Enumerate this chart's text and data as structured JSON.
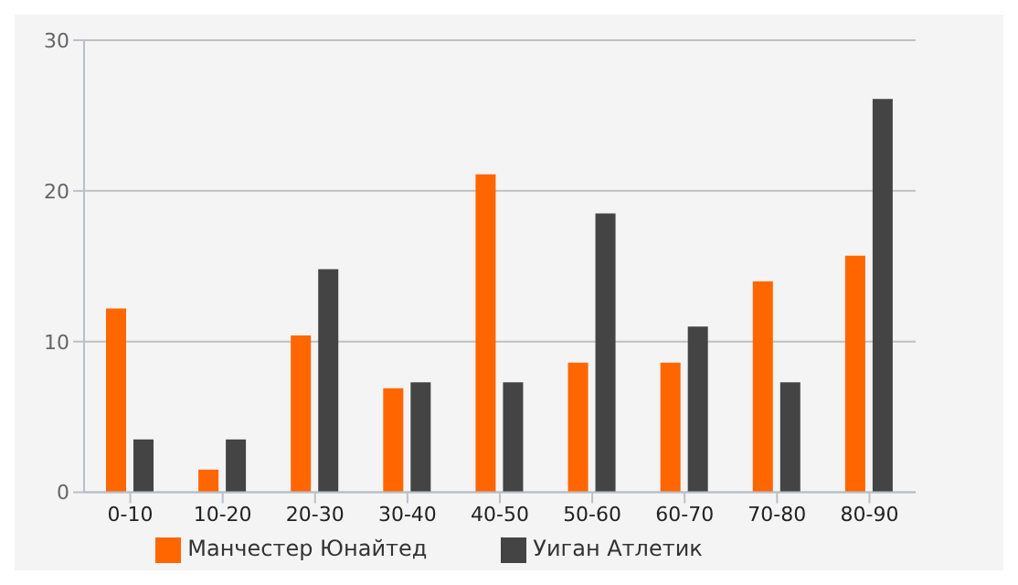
{
  "chart_data": {
    "type": "bar",
    "categories": [
      "0-10",
      "10-20",
      "20-30",
      "30-40",
      "40-50",
      "50-60",
      "60-70",
      "70-80",
      "80-90"
    ],
    "series": [
      {
        "name": "Манчестер Юнайтед",
        "color": "#ff6600",
        "values": [
          12.2,
          1.5,
          10.4,
          6.9,
          21.1,
          8.6,
          8.6,
          14.0,
          15.7
        ]
      },
      {
        "name": "Уиган Атлетик",
        "color": "#444444",
        "values": [
          3.5,
          3.5,
          14.8,
          7.3,
          7.3,
          18.5,
          11.0,
          7.3,
          26.1
        ]
      }
    ],
    "ylim": [
      0,
      30
    ],
    "yticks": [
      0,
      10,
      20,
      30
    ],
    "grid": "y",
    "legend": "bottom"
  }
}
